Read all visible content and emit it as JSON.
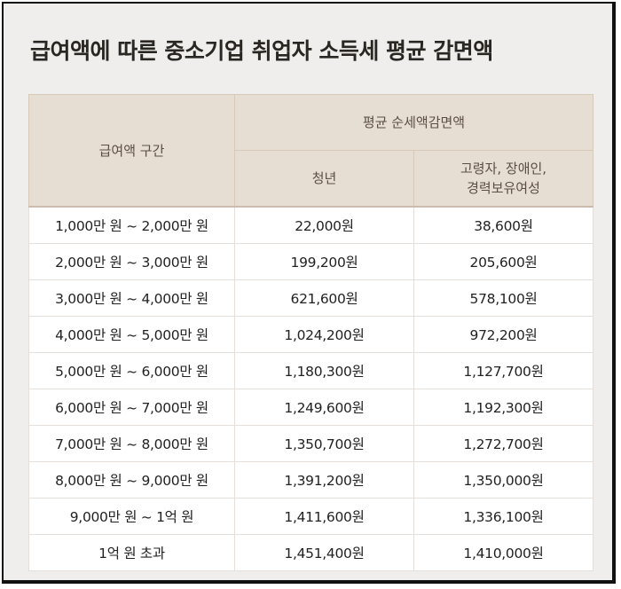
{
  "title": "급여액에 따른 중소기업 취업자 소득세 평균 감면액",
  "table": {
    "header": {
      "range": "급여액 구간",
      "group": "평균 순세액감면액",
      "youth": "청년",
      "other_line1": "고령자, 장애인,",
      "other_line2": "경력보유여성"
    },
    "rows": [
      {
        "range": "1,000만 원 ~ 2,000만 원",
        "youth": "22,000원",
        "other": "38,600원"
      },
      {
        "range": "2,000만 원 ~ 3,000만 원",
        "youth": "199,200원",
        "other": "205,600원"
      },
      {
        "range": "3,000만 원 ~ 4,000만 원",
        "youth": "621,600원",
        "other": "578,100원"
      },
      {
        "range": "4,000만 원 ~ 5,000만 원",
        "youth": "1,024,200원",
        "other": "972,200원"
      },
      {
        "range": "5,000만 원 ~ 6,000만 원",
        "youth": "1,180,300원",
        "other": "1,127,700원"
      },
      {
        "range": "6,000만 원 ~ 7,000만 원",
        "youth": "1,249,600원",
        "other": "1,192,300원"
      },
      {
        "range": "7,000만 원 ~ 8,000만 원",
        "youth": "1,350,700원",
        "other": "1,272,700원"
      },
      {
        "range": "8,000만 원 ~ 9,000만 원",
        "youth": "1,391,200원",
        "other": "1,350,000원"
      },
      {
        "range": "9,000만 원 ~ 1억 원",
        "youth": "1,411,600원",
        "other": "1,336,100원"
      },
      {
        "range": "1억 원 초과",
        "youth": "1,451,400원",
        "other": "1,410,000원"
      }
    ]
  }
}
